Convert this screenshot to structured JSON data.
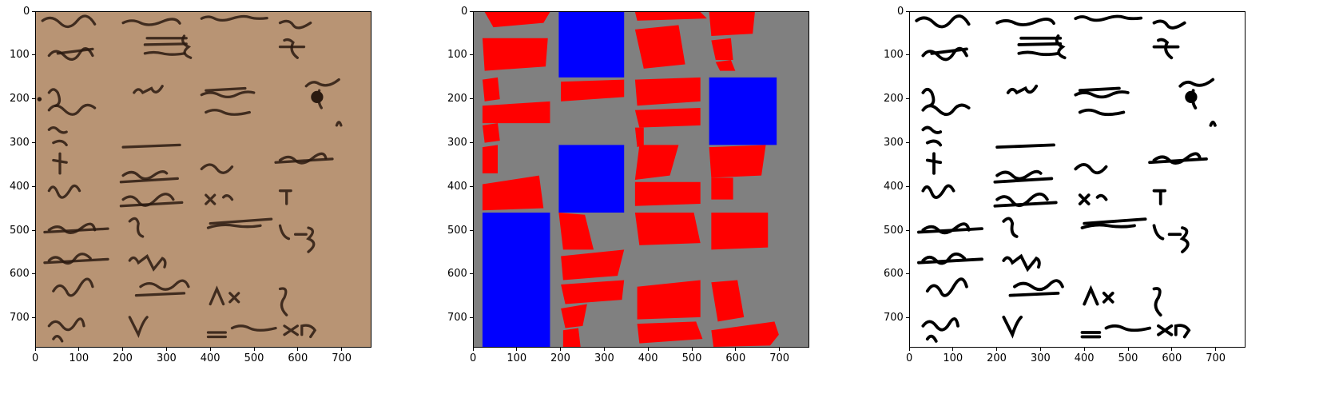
{
  "figure": {
    "panels": [
      {
        "name": "original-manuscript-image",
        "kind": "photo"
      },
      {
        "name": "segmentation-mask",
        "kind": "mask",
        "colors": {
          "background": "#808080",
          "text_region": "#ff0000",
          "block_region": "#0000ff"
        }
      },
      {
        "name": "binarized-image",
        "kind": "binary",
        "colors": {
          "background": "#ffffff",
          "ink": "#000000"
        }
      }
    ],
    "axes": {
      "x_ticks": [
        "0",
        "100",
        "200",
        "300",
        "400",
        "500",
        "600",
        "700"
      ],
      "y_ticks": [
        "0",
        "100",
        "200",
        "300",
        "400",
        "500",
        "600",
        "700"
      ],
      "x_range": [
        0,
        768
      ],
      "y_range": [
        768,
        0
      ]
    },
    "colors": {
      "parchment": "#b08c6c",
      "ink": "#2a1a10"
    }
  }
}
